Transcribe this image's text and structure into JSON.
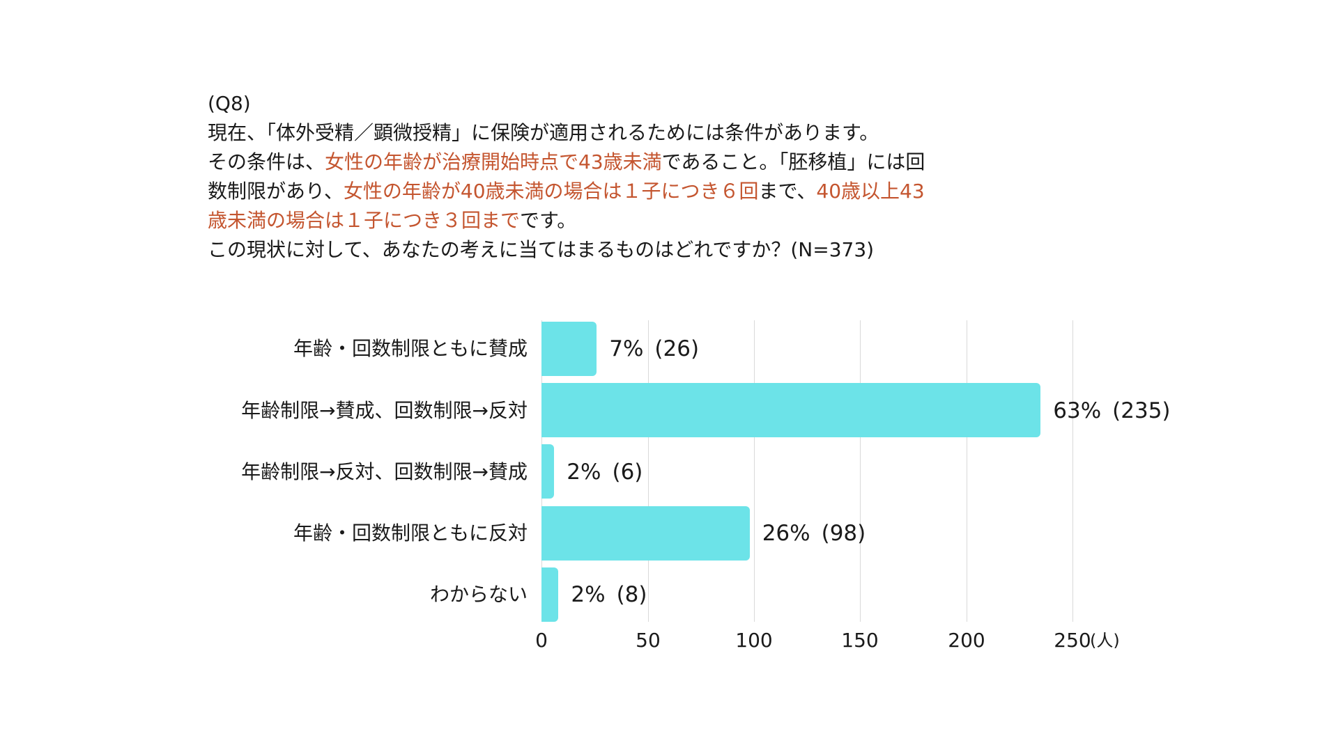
{
  "question": {
    "id": "(Q8)",
    "lines": [
      [
        {
          "text": "(Q8)",
          "highlight": false
        }
      ],
      [
        {
          "text": "現在、「体外受精／顕微授精」に保険が適用されるためには条件があります。",
          "highlight": false
        }
      ],
      [
        {
          "text": "その条件は、",
          "highlight": false
        },
        {
          "text": "女性の年齢が治療開始時点で43歳未満",
          "highlight": true
        },
        {
          "text": "であること。「胚移植」には回",
          "highlight": false
        }
      ],
      [
        {
          "text": "数制限があり、",
          "highlight": false
        },
        {
          "text": "女性の年齢が40歳未満の場合は１子につき６回",
          "highlight": true
        },
        {
          "text": "まで、",
          "highlight": false
        },
        {
          "text": "40歳以上43",
          "highlight": true
        }
      ],
      [
        {
          "text": "歳未満の場合は１子につき３回まで",
          "highlight": true
        },
        {
          "text": "です。",
          "highlight": false
        }
      ],
      [
        {
          "text": "この現状に対して、あなたの考えに当てはまるものはどれですか？(N=373)",
          "highlight": false
        }
      ]
    ]
  },
  "colors": {
    "bar": "#6ce3e8",
    "highlight_text": "#c4552f",
    "gridline": "#d9d9d9",
    "text": "#1a1a1a"
  },
  "chart_data": {
    "type": "bar",
    "orientation": "horizontal",
    "title": "この現状に対して、あなたの考えに当てはまるものはどれですか？(N=373)",
    "categories": [
      "年齢・回数制限ともに賛成",
      "年齢制限→賛成、回数制限→反対",
      "年齢制限→反対、回数制限→賛成",
      "年齢・回数制限ともに反対",
      "わからない"
    ],
    "values": [
      26,
      235,
      6,
      98,
      8
    ],
    "percent_labels": [
      "7%",
      "63%",
      "2%",
      "26%",
      "2%"
    ],
    "count_labels": [
      "(26)",
      "(235)",
      "(6)",
      "(98)",
      "(8)"
    ],
    "xlabel": "(人)",
    "ylabel": "",
    "xlim": [
      0,
      250
    ],
    "xticks": [
      "0",
      "50",
      "100",
      "150",
      "200",
      "250"
    ],
    "grid": true,
    "n": 373
  }
}
